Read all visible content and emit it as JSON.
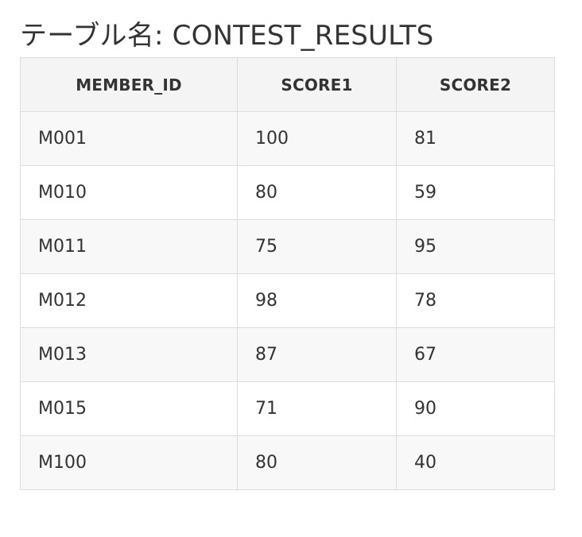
{
  "title": "テーブル名: CONTEST_RESULTS",
  "table": {
    "columns": [
      "MEMBER_ID",
      "SCORE1",
      "SCORE2"
    ],
    "rows": [
      [
        "M001",
        "100",
        "81"
      ],
      [
        "M010",
        "80",
        "59"
      ],
      [
        "M011",
        "75",
        "95"
      ],
      [
        "M012",
        "98",
        "78"
      ],
      [
        "M013",
        "87",
        "67"
      ],
      [
        "M015",
        "71",
        "90"
      ],
      [
        "M100",
        "80",
        "40"
      ]
    ]
  }
}
